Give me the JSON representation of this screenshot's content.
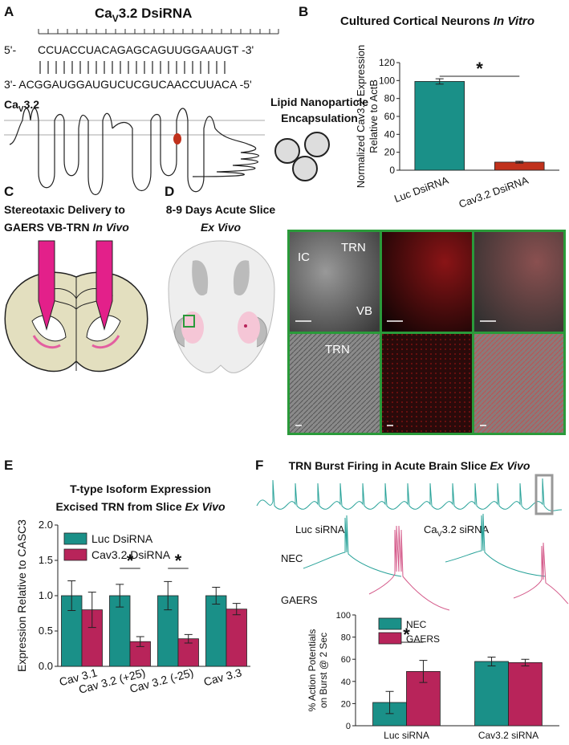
{
  "panel_labels": [
    "A",
    "B",
    "C",
    "D",
    "E",
    "F"
  ],
  "panel_a": {
    "title": {
      "a": "Ca",
      "b": "V",
      "c": "3.2 DsiRNA"
    },
    "seq_top_prefix": "5'-",
    "seq_top": "CCUACCUACAGAGCAGUUGGAAUGT -3'",
    "seq_bottom": "3'- ACGGAUGGAUGUCUCGUCAACCUUACA -5'",
    "protein": {
      "a": "Ca",
      "b": "V",
      "c": "3.2"
    },
    "lnp": [
      "Lipid Nanoparticle",
      "Encapsulation"
    ]
  },
  "panel_b": {
    "title": [
      "Cultured Cortical Neurons ",
      "In Vitro"
    ]
  },
  "panel_c": {
    "title": [
      "Stereotaxic Delivery to",
      "GAERS VB-TRN ",
      "In Vivo"
    ]
  },
  "panel_d": {
    "title": [
      "8-9 Days Acute Slice",
      "Ex Vivo"
    ],
    "image_labels": [
      "IC",
      "TRN",
      "VB",
      "TRN"
    ]
  },
  "panel_e": {
    "title": [
      "T-type Isoform Expression",
      "Excised TRN from Slice ",
      "Ex Vivo"
    ]
  },
  "panel_f": {
    "title": [
      "TRN Burst Firing in Acute Brain Slice ",
      "Ex Vivo"
    ],
    "trace_labels": {
      "luc": "Luc siRNA",
      "cav": {
        "a": "Ca",
        "b": "V",
        "c": "3.2 siRNA"
      }
    },
    "groups": [
      "NEC",
      "GAERS"
    ]
  },
  "chart_data": [
    {
      "type": "bar",
      "categories": [
        "Luc DsiRNA",
        "Cav3.2 DsiRNA"
      ],
      "values": [
        99,
        9
      ],
      "errors": [
        3,
        1
      ],
      "colors": [
        "#1a9088",
        "#c0311c"
      ],
      "ylabel": [
        "Normalized Cav3.2 Expression",
        "Relative to ActB"
      ],
      "ylim": [
        0,
        120
      ],
      "yticks": [
        0,
        20,
        40,
        60,
        80,
        100,
        120
      ],
      "annotations": [
        "*"
      ]
    },
    {
      "type": "bar",
      "categories": [
        "Cav 3.1",
        "Cav 3.2 (+25)",
        "Cav 3.2 (-25)",
        "Cav 3.3"
      ],
      "series": [
        {
          "name": "Luc DsiRNA",
          "color": "#1a9088",
          "values": [
            1.0,
            1.0,
            1.0,
            1.0
          ],
          "errors": [
            0.21,
            0.16,
            0.2,
            0.12
          ]
        },
        {
          "name": "Cav3.2 DsiRNA",
          "color": "#b8245a",
          "values": [
            0.8,
            0.35,
            0.39,
            0.81
          ],
          "errors": [
            0.25,
            0.07,
            0.06,
            0.08
          ]
        }
      ],
      "ylabel": [
        "Expression Relative to CASC3"
      ],
      "ylim": [
        0,
        2.0
      ],
      "yticks": [
        {
          "value": 0,
          "label": "0.0"
        },
        {
          "value": 0.5,
          "label": "0.5"
        },
        {
          "value": 1,
          "label": "1.0"
        },
        {
          "value": 1.5,
          "label": "1.5"
        },
        {
          "value": 2,
          "label": "2.0"
        }
      ],
      "annotations": [
        "*",
        "*"
      ]
    },
    {
      "type": "bar",
      "categories": [
        "Luc siRNA",
        "Cav3.2 siRNA"
      ],
      "series": [
        {
          "name": "NEC",
          "color": "#1a9088",
          "values": [
            21,
            58
          ],
          "errors": [
            10,
            4
          ]
        },
        {
          "name": "GAERS",
          "color": "#b8245a",
          "values": [
            49,
            57
          ],
          "errors": [
            10,
            3
          ]
        }
      ],
      "ylabel": [
        "% Action Potentials",
        "on Burst @ 2 Sec"
      ],
      "ylim": [
        0,
        100
      ],
      "yticks": [
        0,
        20,
        40,
        60,
        80,
        100
      ],
      "annotations": [
        "*"
      ]
    }
  ]
}
